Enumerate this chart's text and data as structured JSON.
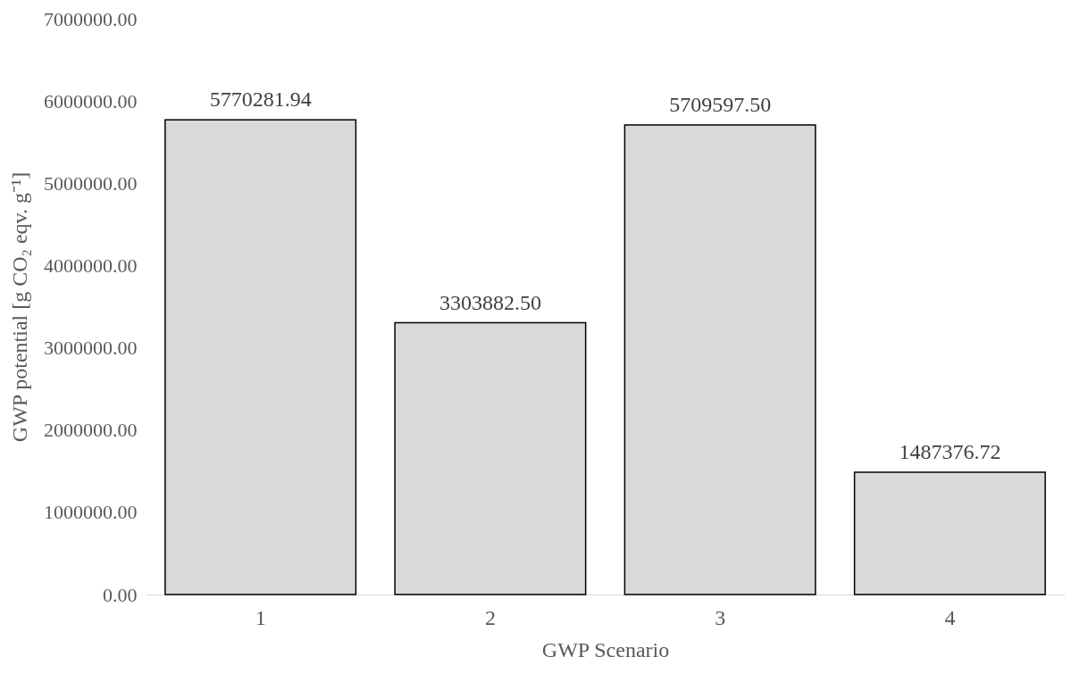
{
  "chart_data": {
    "type": "bar",
    "xlabel": "GWP Scenario",
    "ylabel": "GWP potential [g CO₂ eqv. g⁻¹]",
    "categories": [
      "1",
      "2",
      "3",
      "4"
    ],
    "values": [
      5770281.94,
      3303882.5,
      5709597.5,
      1487376.72
    ],
    "value_labels": [
      "5770281.94",
      "3303882.50",
      "5709597.50",
      "1487376.72"
    ],
    "color": "#d9d9d9",
    "ylim": [
      0,
      7000000
    ],
    "yticks": [
      {
        "value": 0,
        "label": "0.00"
      },
      {
        "value": 1000000,
        "label": "1000000.00"
      },
      {
        "value": 2000000,
        "label": "2000000.00"
      },
      {
        "value": 3000000,
        "label": "3000000.00"
      },
      {
        "value": 4000000,
        "label": "4000000.00"
      },
      {
        "value": 5000000,
        "label": "5000000.00"
      },
      {
        "value": 6000000,
        "label": "6000000.00"
      },
      {
        "value": 7000000,
        "label": "7000000.00"
      }
    ],
    "grid": false
  }
}
